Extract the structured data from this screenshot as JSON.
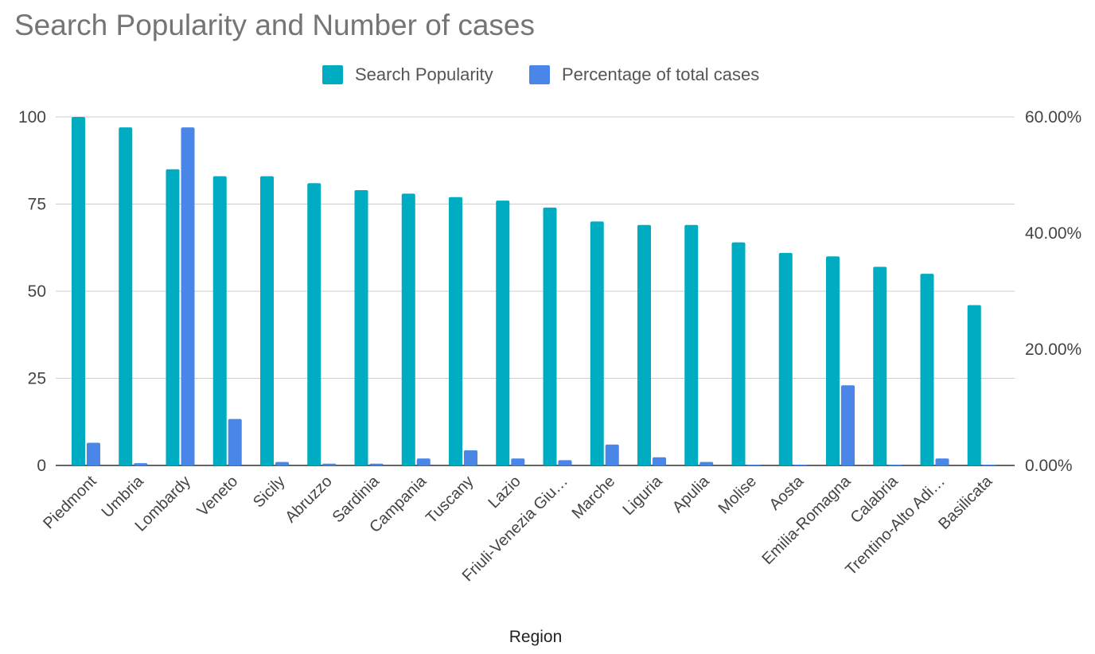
{
  "chart_data": {
    "type": "bar",
    "title": "Search Popularity and Number of cases",
    "xlabel": "Region",
    "ylabel": "",
    "y2label": "",
    "categories": [
      "Piedmont",
      "Umbria",
      "Lombardy",
      "Veneto",
      "Sicily",
      "Abruzzo",
      "Sardinia",
      "Campania",
      "Tuscany",
      "Lazio",
      "Friuli-Venezia Giu…",
      "Marche",
      "Liguria",
      "Apulia",
      "Molise",
      "Aosta",
      "Emilia-Romagna",
      "Calabria",
      "Trentino-Alto Adi…",
      "Basilicata"
    ],
    "series": [
      {
        "name": "Search Popularity",
        "axis": "left",
        "color": "#00acc1",
        "values": [
          100,
          97,
          85,
          83,
          83,
          81,
          79,
          78,
          77,
          76,
          74,
          70,
          69,
          69,
          64,
          61,
          60,
          57,
          55,
          46
        ]
      },
      {
        "name": "Percentage of total cases",
        "axis": "right",
        "color": "#4a86e8",
        "values": [
          3.9,
          0.4,
          58.2,
          8.0,
          0.6,
          0.3,
          0.3,
          1.2,
          2.6,
          1.2,
          0.9,
          3.6,
          1.4,
          0.6,
          0.1,
          0.1,
          13.8,
          0.1,
          1.2,
          0.1
        ]
      }
    ],
    "ylim": [
      0,
      100
    ],
    "yticks": [
      0,
      25,
      50,
      75,
      100
    ],
    "y2lim": [
      0,
      60
    ],
    "y2ticks": [
      "0.00%",
      "20.00%",
      "40.00%",
      "60.00%"
    ],
    "grid": true,
    "legend": "top-center"
  }
}
